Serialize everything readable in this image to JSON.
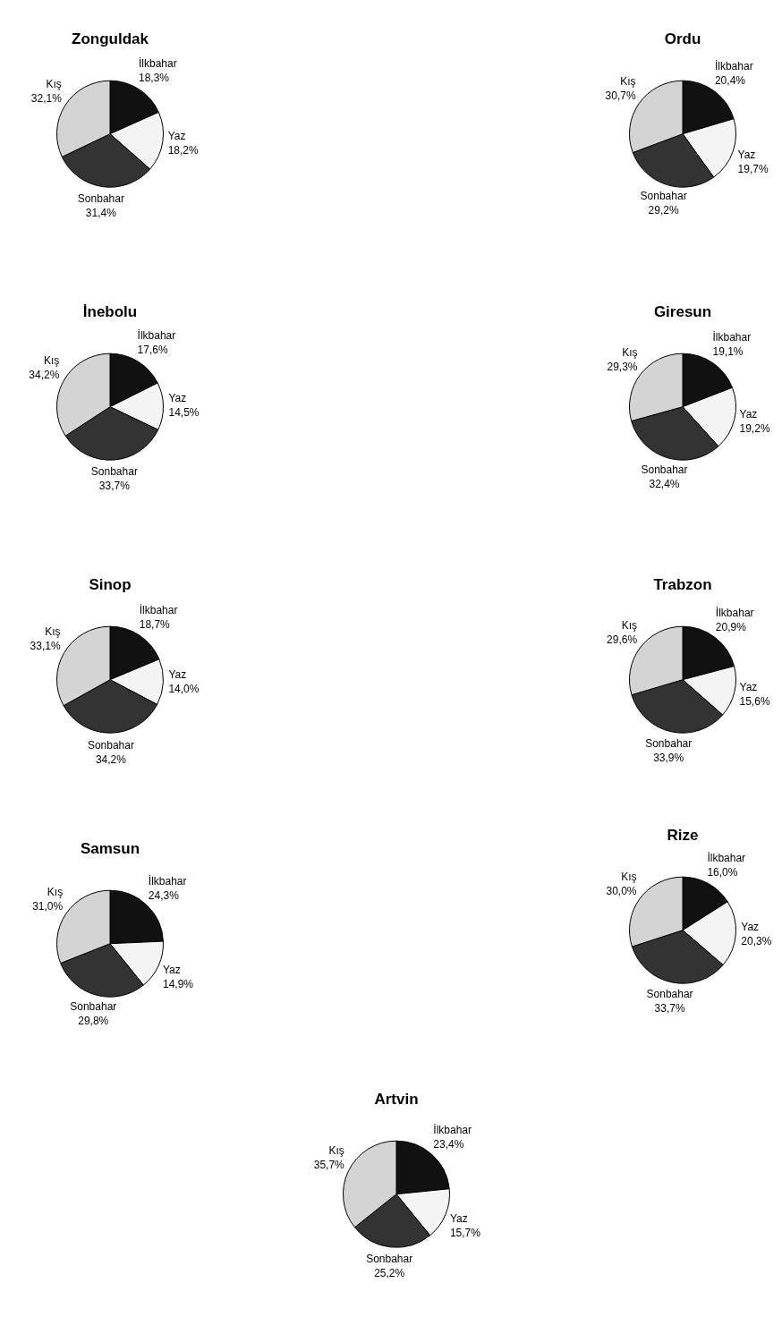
{
  "chart_data": [
    {
      "type": "pie",
      "title": "Zonguldak",
      "categories": [
        "İlkbahar",
        "Yaz",
        "Sonbahar",
        "Kış"
      ],
      "values": [
        18.3,
        18.2,
        31.4,
        32.1
      ],
      "value_labels": [
        "18,3%",
        "18,2%",
        "31,4%",
        "32,1%"
      ],
      "colors": [
        "#111111",
        "#f4f4f4",
        "#333333",
        "#d4d4d4"
      ],
      "legend": false
    },
    {
      "type": "pie",
      "title": "Ordu",
      "categories": [
        "İlkbahar",
        "Yaz",
        "Sonbahar",
        "Kış"
      ],
      "values": [
        20.4,
        19.7,
        29.2,
        30.7
      ],
      "value_labels": [
        "20,4%",
        "19,7%",
        "29,2%",
        "30,7%"
      ],
      "colors": [
        "#111111",
        "#f4f4f4",
        "#333333",
        "#d4d4d4"
      ],
      "legend": false
    },
    {
      "type": "pie",
      "title": "İnebolu",
      "categories": [
        "İlkbahar",
        "Yaz",
        "Sonbahar",
        "Kış"
      ],
      "values": [
        17.6,
        14.5,
        33.7,
        34.2
      ],
      "value_labels": [
        "17,6%",
        "14,5%",
        "33,7%",
        "34,2%"
      ],
      "colors": [
        "#111111",
        "#f4f4f4",
        "#333333",
        "#d4d4d4"
      ],
      "legend": false
    },
    {
      "type": "pie",
      "title": "Giresun",
      "categories": [
        "İlkbahar",
        "Yaz",
        "Sonbahar",
        "Kış"
      ],
      "values": [
        19.1,
        19.2,
        32.4,
        29.3
      ],
      "value_labels": [
        "19,1%",
        "19,2%",
        "32,4%",
        "29,3%"
      ],
      "colors": [
        "#111111",
        "#f4f4f4",
        "#333333",
        "#d4d4d4"
      ],
      "legend": false
    },
    {
      "type": "pie",
      "title": "Sinop",
      "categories": [
        "İlkbahar",
        "Yaz",
        "Sonbahar",
        "Kış"
      ],
      "values": [
        18.7,
        14.0,
        34.2,
        33.1
      ],
      "value_labels": [
        "18,7%",
        "14,0%",
        "34,2%",
        "33,1%"
      ],
      "colors": [
        "#111111",
        "#f4f4f4",
        "#333333",
        "#d4d4d4"
      ],
      "legend": false
    },
    {
      "type": "pie",
      "title": "Trabzon",
      "categories": [
        "İlkbahar",
        "Yaz",
        "Sonbahar",
        "Kış"
      ],
      "values": [
        20.9,
        15.6,
        33.9,
        29.6
      ],
      "value_labels": [
        "20,9%",
        "15,6%",
        "33,9%",
        "29,6%"
      ],
      "colors": [
        "#111111",
        "#f4f4f4",
        "#333333",
        "#d4d4d4"
      ],
      "legend": false
    },
    {
      "type": "pie",
      "title": "Samsun",
      "categories": [
        "İlkbahar",
        "Yaz",
        "Sonbahar",
        "Kış"
      ],
      "values": [
        24.3,
        14.9,
        29.8,
        31.0
      ],
      "value_labels": [
        "24,3%",
        "14,9%",
        "29,8%",
        "31,0%"
      ],
      "colors": [
        "#111111",
        "#f4f4f4",
        "#333333",
        "#d4d4d4"
      ],
      "legend": false
    },
    {
      "type": "pie",
      "title": "Rize",
      "categories": [
        "İlkbahar",
        "Yaz",
        "Sonbahar",
        "Kış"
      ],
      "values": [
        16.0,
        20.3,
        33.7,
        30.0
      ],
      "value_labels": [
        "16,0%",
        "20,3%",
        "33,7%",
        "30,0%"
      ],
      "colors": [
        "#111111",
        "#f4f4f4",
        "#333333",
        "#d4d4d4"
      ],
      "legend": false
    },
    {
      "type": "pie",
      "title": "Artvin",
      "categories": [
        "İlkbahar",
        "Yaz",
        "Sonbahar",
        "Kış"
      ],
      "values": [
        23.4,
        15.7,
        25.2,
        35.7
      ],
      "value_labels": [
        "23,4%",
        "15,7%",
        "25,2%",
        "35,7%"
      ],
      "colors": [
        "#111111",
        "#f4f4f4",
        "#333333",
        "#d4d4d4"
      ],
      "legend": false
    }
  ]
}
